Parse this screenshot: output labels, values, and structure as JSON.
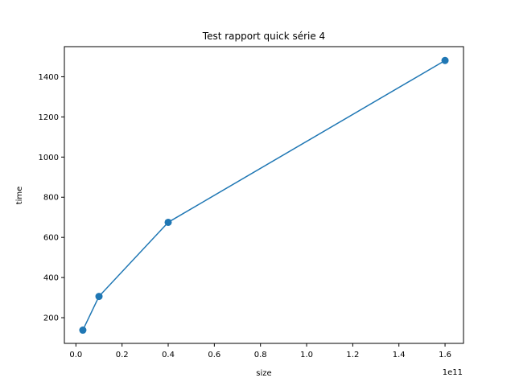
{
  "chart_data": {
    "type": "line",
    "title": "Test rapport quick série 4",
    "xlabel": "size",
    "ylabel": "time",
    "x_offset_label": "1e11",
    "x_tick_labels": [
      "0.0",
      "0.2",
      "0.4",
      "0.6",
      "0.8",
      "1.0",
      "1.2",
      "1.4",
      "1.6"
    ],
    "x_ticks": [
      0,
      20000000000,
      40000000000,
      60000000000,
      80000000000,
      100000000000,
      120000000000,
      140000000000,
      160000000000
    ],
    "y_ticks": [
      200,
      400,
      600,
      800,
      1000,
      1200,
      1400
    ],
    "xlim": [
      -5000000000,
      168000000000
    ],
    "ylim": [
      72,
      1550
    ],
    "grid": false,
    "series": [
      {
        "color": "#1f77b4",
        "marker": "circle",
        "x": [
          3000000000,
          10000000000,
          40000000000,
          160000000000
        ],
        "y": [
          138,
          306,
          675,
          1481
        ]
      }
    ]
  }
}
